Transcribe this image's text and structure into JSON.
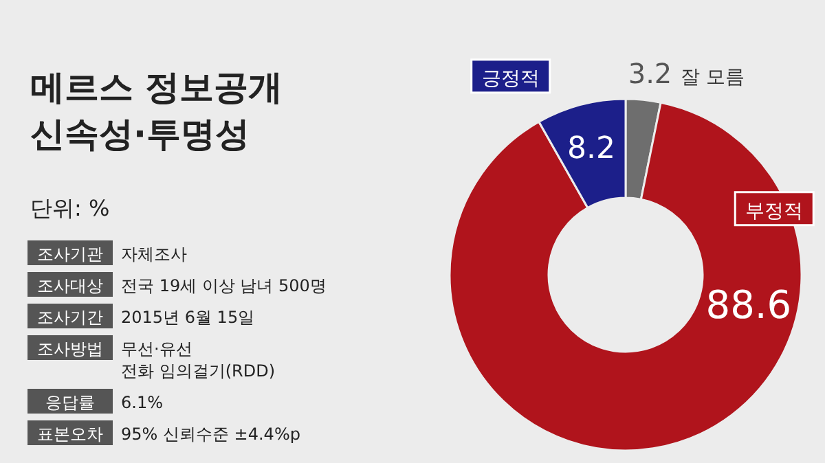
{
  "chart_data": {
    "type": "donut",
    "title": "메르스 정보공개\n신속성·투명성",
    "subtitle": "단위: %",
    "categories": [
      "잘 모름",
      "부정적",
      "긍정적"
    ],
    "values": [
      3.2,
      88.6,
      8.2
    ],
    "colors": [
      "#6e6e6e",
      "#b0141c",
      "#1c1f8a"
    ],
    "data_labels": true,
    "annotations": [
      "조사기관",
      "자체조사",
      "조사대상",
      "전국 19세 이상 남녀 500명",
      "조사기간",
      "2015년 6월 15일",
      "조사방법",
      "무선·유선\n전화 임의걸기(RDD)",
      "응답률",
      "6.1%",
      "표본오차",
      "95% 신뢰수준 ±4.4%p"
    ]
  }
}
